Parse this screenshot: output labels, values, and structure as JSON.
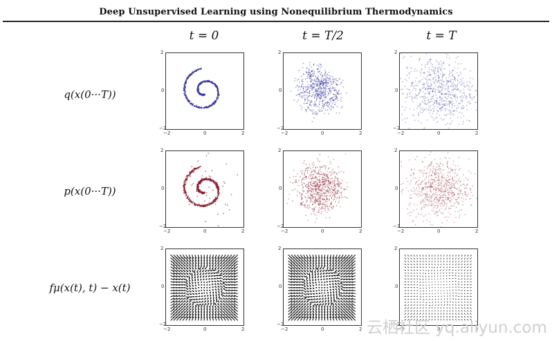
{
  "title": "Deep Unsupervised Learning using Nonequilibrium Thermodynamics",
  "columns": [
    "t = 0",
    "t = T/2",
    "t = T"
  ],
  "rows": [
    {
      "label": "q(x(0···T))"
    },
    {
      "label": "p(x(0···T))"
    },
    {
      "label": "fμ(x(t), t) − x(t)"
    }
  ],
  "ticks": {
    "min": "−2",
    "zero": "0",
    "max": "2"
  },
  "colors": {
    "q": "#3a3aa0",
    "p": "#8a2030",
    "arrows": "#111111"
  },
  "watermark": "云栖社区 yq.aliyun.com"
}
